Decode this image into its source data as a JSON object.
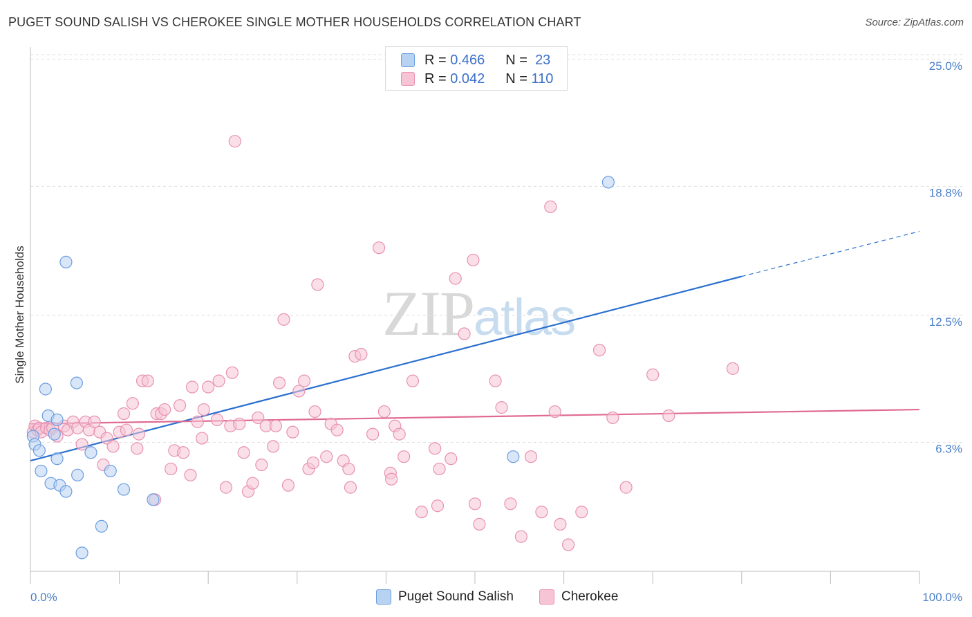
{
  "title": "PUGET SOUND SALISH VS CHEROKEE SINGLE MOTHER HOUSEHOLDS CORRELATION CHART",
  "source": "Source: ZipAtlas.com",
  "watermark": {
    "zip": "ZIP",
    "atlas": "atlas"
  },
  "colors": {
    "series1_fill": "#b8d2f2",
    "series1_stroke": "#6a9ee0",
    "series1_line": "#2a6fcf",
    "series2_fill": "#f6c4d5",
    "series2_stroke": "#e891b1",
    "series2_line": "#e06a94",
    "tick_text": "#4a7fc8",
    "grid": "#dddddd"
  },
  "legend_top": {
    "rows": [
      {
        "r_label": "R =",
        "r_value": "0.466",
        "n_label": "N =",
        "n_value": "23"
      },
      {
        "r_label": "R =",
        "r_value": "0.042",
        "n_label": "N =",
        "n_value": "110"
      }
    ]
  },
  "legend_bottom": {
    "items": [
      {
        "label": "Puget Sound Salish"
      },
      {
        "label": "Cherokee"
      }
    ]
  },
  "chart_data": {
    "type": "scatter",
    "title": "PUGET SOUND SALISH VS CHEROKEE SINGLE MOTHER HOUSEHOLDS CORRELATION CHART",
    "xlabel": "",
    "ylabel": "Single Mother Households",
    "xlim": [
      0,
      100
    ],
    "ylim": [
      0,
      25.6
    ],
    "x_tick_labels": [
      "0.0%",
      "100.0%"
    ],
    "y_ticks": [
      6.3,
      12.5,
      18.8,
      25.0
    ],
    "y_tick_labels": [
      "6.3%",
      "12.5%",
      "18.8%",
      "25.0%"
    ],
    "grid": true,
    "series": [
      {
        "name": "Puget Sound Salish",
        "R": 0.466,
        "N": 23,
        "trend": {
          "x0": 0,
          "y0": 5.4,
          "x1": 80,
          "y1": 14.4,
          "dash_to_x": 100,
          "dash_to_y": 16.6
        },
        "points": [
          [
            0.3,
            6.6
          ],
          [
            0.5,
            6.2
          ],
          [
            1.0,
            5.9
          ],
          [
            1.2,
            4.9
          ],
          [
            1.7,
            8.9
          ],
          [
            2.0,
            7.6
          ],
          [
            2.3,
            4.3
          ],
          [
            2.7,
            6.7
          ],
          [
            3.0,
            7.4
          ],
          [
            3.0,
            5.5
          ],
          [
            3.3,
            4.2
          ],
          [
            4.0,
            3.9
          ],
          [
            4.0,
            15.1
          ],
          [
            5.2,
            9.2
          ],
          [
            5.3,
            4.7
          ],
          [
            5.8,
            0.9
          ],
          [
            6.8,
            5.8
          ],
          [
            8.0,
            2.2
          ],
          [
            9.0,
            4.9
          ],
          [
            10.5,
            4.0
          ],
          [
            13.8,
            3.5
          ],
          [
            54.3,
            5.6
          ],
          [
            65.0,
            19.0
          ]
        ]
      },
      {
        "name": "Cherokee",
        "R": 0.042,
        "N": 110,
        "trend": {
          "x0": 0,
          "y0": 7.2,
          "x1": 100,
          "y1": 7.9
        },
        "points": [
          [
            0.3,
            6.8
          ],
          [
            0.5,
            7.1
          ],
          [
            0.8,
            6.9
          ],
          [
            1.0,
            7.0
          ],
          [
            1.2,
            6.8
          ],
          [
            1.8,
            7.0
          ],
          [
            2.2,
            6.9
          ],
          [
            2.5,
            7.0
          ],
          [
            3.0,
            6.6
          ],
          [
            3.8,
            7.1
          ],
          [
            4.2,
            6.9
          ],
          [
            4.8,
            7.3
          ],
          [
            5.3,
            7.0
          ],
          [
            5.8,
            6.2
          ],
          [
            6.2,
            7.3
          ],
          [
            6.6,
            6.9
          ],
          [
            7.2,
            7.3
          ],
          [
            7.8,
            6.8
          ],
          [
            8.2,
            5.2
          ],
          [
            8.6,
            6.5
          ],
          [
            9.3,
            6.1
          ],
          [
            10.0,
            6.8
          ],
          [
            10.5,
            7.7
          ],
          [
            10.8,
            6.9
          ],
          [
            11.5,
            8.2
          ],
          [
            12.0,
            6.0
          ],
          [
            12.2,
            6.7
          ],
          [
            12.6,
            9.3
          ],
          [
            13.2,
            9.3
          ],
          [
            14.0,
            3.5
          ],
          [
            14.2,
            7.7
          ],
          [
            14.7,
            7.7
          ],
          [
            15.1,
            7.9
          ],
          [
            15.8,
            5.0
          ],
          [
            16.2,
            5.9
          ],
          [
            16.8,
            8.1
          ],
          [
            17.2,
            5.8
          ],
          [
            18.0,
            4.7
          ],
          [
            18.2,
            9.0
          ],
          [
            18.8,
            7.3
          ],
          [
            19.3,
            6.5
          ],
          [
            19.5,
            7.9
          ],
          [
            20.0,
            9.0
          ],
          [
            21.0,
            7.4
          ],
          [
            21.2,
            9.3
          ],
          [
            22.0,
            4.1
          ],
          [
            22.5,
            7.1
          ],
          [
            22.7,
            9.7
          ],
          [
            23.0,
            21.0
          ],
          [
            23.5,
            7.2
          ],
          [
            24.0,
            5.8
          ],
          [
            24.5,
            3.9
          ],
          [
            25.0,
            4.3
          ],
          [
            25.6,
            7.5
          ],
          [
            26.0,
            5.2
          ],
          [
            26.5,
            7.1
          ],
          [
            27.3,
            6.1
          ],
          [
            27.6,
            7.1
          ],
          [
            28.0,
            9.2
          ],
          [
            28.5,
            12.3
          ],
          [
            29.0,
            4.2
          ],
          [
            29.5,
            6.8
          ],
          [
            30.2,
            8.8
          ],
          [
            30.8,
            9.3
          ],
          [
            31.3,
            5.0
          ],
          [
            31.8,
            5.3
          ],
          [
            32.0,
            7.8
          ],
          [
            32.3,
            14.0
          ],
          [
            33.3,
            5.6
          ],
          [
            33.8,
            7.2
          ],
          [
            34.5,
            6.9
          ],
          [
            35.2,
            5.4
          ],
          [
            35.8,
            5.0
          ],
          [
            36.0,
            4.1
          ],
          [
            36.5,
            10.5
          ],
          [
            37.2,
            10.6
          ],
          [
            38.5,
            6.7
          ],
          [
            39.2,
            15.8
          ],
          [
            39.8,
            7.8
          ],
          [
            40.5,
            4.8
          ],
          [
            40.6,
            4.5
          ],
          [
            41.0,
            7.1
          ],
          [
            41.5,
            6.7
          ],
          [
            42.0,
            5.6
          ],
          [
            43.0,
            9.3
          ],
          [
            44.0,
            2.9
          ],
          [
            45.5,
            6.0
          ],
          [
            45.8,
            3.2
          ],
          [
            46.0,
            5.0
          ],
          [
            47.3,
            5.5
          ],
          [
            47.8,
            14.3
          ],
          [
            48.8,
            11.6
          ],
          [
            49.8,
            15.2
          ],
          [
            50.0,
            3.3
          ],
          [
            50.5,
            2.3
          ],
          [
            52.3,
            9.3
          ],
          [
            53.0,
            8.0
          ],
          [
            54.0,
            3.3
          ],
          [
            55.2,
            1.7
          ],
          [
            56.3,
            5.6
          ],
          [
            57.5,
            2.9
          ],
          [
            58.5,
            17.8
          ],
          [
            59.0,
            7.8
          ],
          [
            59.6,
            2.3
          ],
          [
            60.5,
            1.3
          ],
          [
            62.0,
            2.9
          ],
          [
            64.0,
            10.8
          ],
          [
            65.5,
            7.5
          ],
          [
            67.0,
            4.1
          ],
          [
            70.0,
            9.6
          ],
          [
            71.8,
            7.6
          ],
          [
            79.0,
            9.9
          ]
        ]
      }
    ]
  }
}
